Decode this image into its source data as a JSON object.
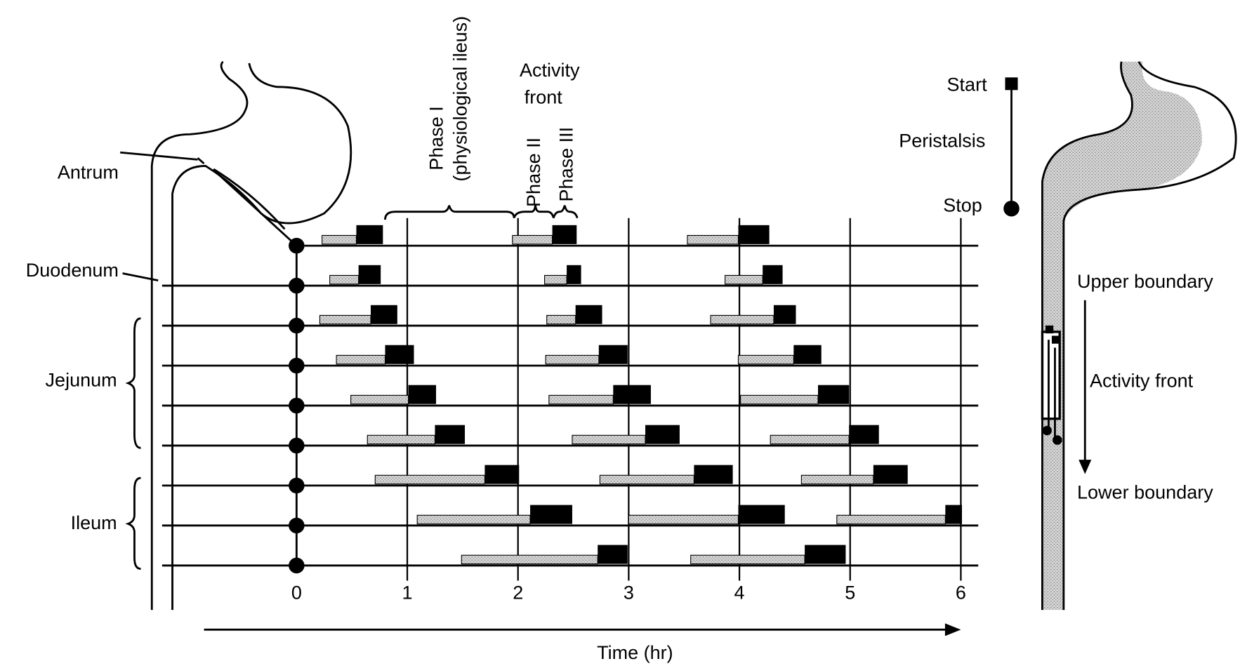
{
  "diagram": {
    "regions": [
      "Antrum",
      "Duodenum",
      "Jejunum",
      "Ileum"
    ],
    "phase_labels": {
      "phase1": [
        "Phase I",
        "(physiological ileus)"
      ],
      "activity_front": [
        "Activity",
        "front"
      ],
      "phase2": "Phase II",
      "phase3": "Phase III"
    },
    "legend": {
      "start": "Start",
      "peristalsis": "Peristalsis",
      "stop": "Stop"
    },
    "right_labels": {
      "upper": "Upper boundary",
      "front": "Activity front",
      "lower": "Lower boundary"
    },
    "xlabel": "Time (hr)",
    "xlim": [
      0,
      6
    ],
    "xticks": [
      0,
      1,
      2,
      3,
      4,
      5,
      6
    ],
    "rows": [
      {
        "cycles": [
          [
            0.23,
            0.54,
            0.78
          ],
          [
            1.95,
            2.31,
            2.53
          ],
          [
            3.53,
            3.99,
            4.27
          ]
        ]
      },
      {
        "cycles": [
          [
            0.3,
            0.56,
            0.76
          ],
          [
            2.24,
            2.44,
            2.57
          ],
          [
            3.87,
            4.21,
            4.39
          ]
        ]
      },
      {
        "cycles": [
          [
            0.21,
            0.67,
            0.91
          ],
          [
            2.26,
            2.52,
            2.76
          ],
          [
            3.74,
            4.31,
            4.51
          ]
        ]
      },
      {
        "cycles": [
          [
            0.36,
            0.8,
            1.06
          ],
          [
            2.25,
            2.73,
            2.99
          ],
          [
            3.99,
            4.49,
            4.74
          ]
        ]
      },
      {
        "cycles": [
          [
            0.49,
            1.01,
            1.26
          ],
          [
            2.28,
            2.86,
            3.2
          ],
          [
            4.01,
            4.71,
            4.99
          ]
        ]
      },
      {
        "cycles": [
          [
            0.64,
            1.25,
            1.52
          ],
          [
            2.49,
            3.15,
            3.46
          ],
          [
            4.28,
            4.99,
            5.26
          ]
        ]
      },
      {
        "cycles": [
          [
            0.71,
            1.7,
            2.01
          ],
          [
            2.74,
            3.59,
            3.94
          ],
          [
            4.56,
            5.21,
            5.52
          ]
        ]
      },
      {
        "cycles": [
          [
            1.09,
            2.11,
            2.49
          ],
          [
            3.0,
            3.99,
            4.41
          ],
          [
            4.88,
            5.86,
            6.01
          ]
        ]
      },
      {
        "cycles": [
          [
            1.49,
            2.72,
            2.99
          ],
          [
            3.56,
            4.59,
            4.96
          ]
        ]
      }
    ]
  }
}
